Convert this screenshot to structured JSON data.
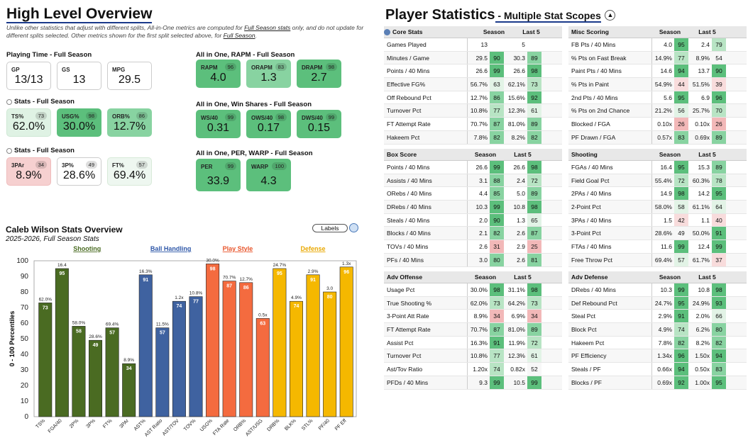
{
  "high_level": {
    "title": "High Level Overview",
    "desc_pre": "Unlike other statistics that adjust with different splits, All-in-One metrics are computed for ",
    "desc_link1": "Full Season stats",
    "desc_mid": " only, and do not update for different splits selected. Other metrics shown for the first split selected above, for ",
    "desc_link2": "Full Season",
    "desc_end": "."
  },
  "playing_time": {
    "heading": "Playing Time - Full Season",
    "cards": [
      {
        "label": "GP",
        "value": "13/13"
      },
      {
        "label": "GS",
        "value": "13"
      },
      {
        "label": "MPG",
        "value": "29.5"
      }
    ]
  },
  "stats1": {
    "heading": "Stats - Full Season",
    "cards": [
      {
        "label": "TS%",
        "value": "62.0%",
        "pct": "73"
      },
      {
        "label": "USG%",
        "value": "30.0%",
        "pct": "98"
      },
      {
        "label": "ORB%",
        "value": "12.7%",
        "pct": "86"
      }
    ]
  },
  "stats2": {
    "heading": "Stats - Full Season",
    "cards": [
      {
        "label": "3PAr",
        "value": "8.9%",
        "pct": "34"
      },
      {
        "label": "3P%",
        "value": "28.6%",
        "pct": "49"
      },
      {
        "label": "FT%",
        "value": "69.4%",
        "pct": "57"
      }
    ]
  },
  "rapm": {
    "heading": "All in One, RAPM - Full Season",
    "cards": [
      {
        "label": "RAPM",
        "value": "4.0",
        "pct": "96"
      },
      {
        "label": "ORAPM",
        "value": "1.3",
        "pct": "83"
      },
      {
        "label": "DRAPM",
        "value": "2.7",
        "pct": "98"
      }
    ]
  },
  "winshares": {
    "heading": "All in One, Win Shares - Full Season",
    "cards": [
      {
        "label": "WS/40",
        "value": "0.31",
        "pct": "99"
      },
      {
        "label": "OWS/40",
        "value": "0.17",
        "pct": "98"
      },
      {
        "label": "DWS/40",
        "value": "0.15",
        "pct": "99"
      }
    ]
  },
  "perwarp": {
    "heading": "All in One, PER, WARP - Full Season",
    "cards": [
      {
        "label": "PER",
        "value": "33.9",
        "pct": "99"
      },
      {
        "label": "WARP",
        "value": "4.3",
        "pct": "100"
      }
    ]
  },
  "player_stats": {
    "title": "Player Statistics",
    "subtitle": " - Multiple Stat Scopes",
    "col_season": "Season",
    "col_last5": "Last 5"
  },
  "tables": [
    {
      "title": "Core Stats",
      "rows": [
        [
          "Games Played",
          "13",
          "",
          "5",
          ""
        ],
        [
          "Minutes / Game",
          "29.5",
          "90",
          "30.3",
          "89"
        ],
        [
          "Points / 40 Mins",
          "26.6",
          "99",
          "26.6",
          "98"
        ],
        [
          "Effective FG%",
          "56.7%",
          "63",
          "62.1%",
          "73"
        ],
        [
          "Off Rebound Pct",
          "12.7%",
          "86",
          "15.6%",
          "92"
        ],
        [
          "Turnover Pct",
          "10.8%",
          "77",
          "12.3%",
          "61"
        ],
        [
          "FT Attempt Rate",
          "70.7%",
          "87",
          "81.0%",
          "89"
        ],
        [
          "Hakeem Pct",
          "7.8%",
          "82",
          "8.2%",
          "82"
        ]
      ]
    },
    {
      "title": "Misc Scoring",
      "rows": [
        [
          "FB Pts / 40 Mins",
          "4.0",
          "95",
          "2.4",
          "79"
        ],
        [
          "% Pts on Fast Break",
          "14.9%",
          "77",
          "8.9%",
          "54"
        ],
        [
          "Paint Pts / 40 Mins",
          "14.6",
          "94",
          "13.7",
          "90"
        ],
        [
          "% Pts in Paint",
          "54.9%",
          "44",
          "51.5%",
          "39"
        ],
        [
          "2nd Pts / 40 Mins",
          "5.6",
          "95",
          "6.9",
          "96"
        ],
        [
          "% Pts on 2nd Chance",
          "21.2%",
          "56",
          "25.7%",
          "70"
        ],
        [
          "Blocked / FGA",
          "0.10x",
          "26",
          "0.10x",
          "26"
        ],
        [
          "PF Drawn / FGA",
          "0.57x",
          "83",
          "0.69x",
          "89"
        ]
      ]
    },
    {
      "title": "Box Score",
      "rows": [
        [
          "Points / 40 Mins",
          "26.6",
          "99",
          "26.6",
          "98"
        ],
        [
          "Assists / 40 Mins",
          "3.1",
          "88",
          "2.4",
          "72"
        ],
        [
          "ORebs / 40 Mins",
          "4.4",
          "85",
          "5.0",
          "89"
        ],
        [
          "DRebs / 40 Mins",
          "10.3",
          "99",
          "10.8",
          "98"
        ],
        [
          "Steals / 40 Mins",
          "2.0",
          "90",
          "1.3",
          "65"
        ],
        [
          "Blocks / 40 Mins",
          "2.1",
          "82",
          "2.6",
          "87"
        ],
        [
          "TOVs / 40 Mins",
          "2.6",
          "31",
          "2.9",
          "25"
        ],
        [
          "PFs / 40 Mins",
          "3.0",
          "80",
          "2.6",
          "81"
        ]
      ]
    },
    {
      "title": "Shooting",
      "rows": [
        [
          "FGAs / 40 Mins",
          "16.4",
          "95",
          "15.3",
          "89"
        ],
        [
          "Field Goal Pct",
          "55.4%",
          "72",
          "60.3%",
          "78"
        ],
        [
          "2PAs / 40 Mins",
          "14.9",
          "98",
          "14.2",
          "95"
        ],
        [
          "2-Point Pct",
          "58.0%",
          "58",
          "61.1%",
          "64"
        ],
        [
          "3PAs / 40 Mins",
          "1.5",
          "42",
          "1.1",
          "40"
        ],
        [
          "3-Point Pct",
          "28.6%",
          "49",
          "50.0%",
          "91"
        ],
        [
          "FTAs / 40 Mins",
          "11.6",
          "99",
          "12.4",
          "99"
        ],
        [
          "Free Throw Pct",
          "69.4%",
          "57",
          "61.7%",
          "37"
        ]
      ]
    },
    {
      "title": "Adv Offense",
      "rows": [
        [
          "Usage Pct",
          "30.0%",
          "98",
          "31.1%",
          "98"
        ],
        [
          "True Shooting %",
          "62.0%",
          "73",
          "64.2%",
          "73"
        ],
        [
          "3-Point Att Rate",
          "8.9%",
          "34",
          "6.9%",
          "34"
        ],
        [
          "FT Attempt Rate",
          "70.7%",
          "87",
          "81.0%",
          "89"
        ],
        [
          "Assist Pct",
          "16.3%",
          "91",
          "11.9%",
          "72"
        ],
        [
          "Turnover Pct",
          "10.8%",
          "77",
          "12.3%",
          "61"
        ],
        [
          "Ast/Tov Ratio",
          "1.20x",
          "74",
          "0.82x",
          "52"
        ],
        [
          "PFDs / 40 Mins",
          "9.3",
          "99",
          "10.5",
          "99"
        ]
      ]
    },
    {
      "title": "Adv Defense",
      "rows": [
        [
          "DRebs / 40 Mins",
          "10.3",
          "99",
          "10.8",
          "98"
        ],
        [
          "Def Rebound Pct",
          "24.7%",
          "95",
          "24.9%",
          "93"
        ],
        [
          "Steal Pct",
          "2.9%",
          "91",
          "2.0%",
          "66"
        ],
        [
          "Block Pct",
          "4.9%",
          "74",
          "6.2%",
          "80"
        ],
        [
          "Hakeem Pct",
          "7.8%",
          "82",
          "8.2%",
          "82"
        ],
        [
          "PF Efficiency",
          "1.34x",
          "96",
          "1.50x",
          "94"
        ],
        [
          "Steals / PF",
          "0.66x",
          "94",
          "0.50x",
          "83"
        ],
        [
          "Blocks / PF",
          "0.69x",
          "92",
          "1.00x",
          "95"
        ]
      ]
    }
  ],
  "overview": {
    "title": "Caleb Wilson Stats Overview",
    "subtitle": "2025-2026, Full Season Stats",
    "labels_button": "Labels"
  },
  "chart_data": {
    "type": "bar",
    "ylabel": "0 - 100 Percentiles",
    "ylim": [
      0,
      100
    ],
    "yticks": [
      0,
      10,
      20,
      30,
      40,
      50,
      60,
      70,
      80,
      90,
      100
    ],
    "groups": [
      {
        "name": "Shooting",
        "color": "#4a6b22",
        "text_color": "#4a6b22"
      },
      {
        "name": "Ball Handling",
        "color": "#3f62a0",
        "text_color": "#2e57a8"
      },
      {
        "name": "Play Style",
        "color": "#f46b3f",
        "text_color": "#e8542a"
      },
      {
        "name": "Defense",
        "color": "#f5b800",
        "text_color": "#e9a800"
      }
    ],
    "categories": [
      "TS%",
      "FGA/40",
      "2P%",
      "3P%",
      "FT%",
      "3PAr",
      "AST%",
      "AST Ratio",
      "AST/TOV",
      "TOV%",
      "USG%",
      "FTA Rate",
      "ORB%",
      "AST/USG",
      "DRB%",
      "BLK%",
      "STL%",
      "PF/40",
      "PF Eff"
    ],
    "group_index": [
      0,
      0,
      0,
      0,
      0,
      0,
      1,
      1,
      1,
      1,
      2,
      2,
      2,
      2,
      3,
      3,
      3,
      3,
      3
    ],
    "values": [
      73,
      95,
      58,
      49,
      57,
      34,
      91,
      57,
      74,
      77,
      98,
      87,
      86,
      63,
      95,
      74,
      91,
      80,
      96
    ],
    "stat_labels": [
      "62.0%",
      "16.4",
      "58.0%",
      "28.6%",
      "69.4%",
      "8.9%",
      "16.3%",
      "11.5%",
      "1.2x",
      "10.8%",
      "30.0%",
      "70.7%",
      "12.7%",
      "0.5x",
      "24.7%",
      "4.9%",
      "2.9%",
      "3.0",
      "1.3x"
    ]
  }
}
